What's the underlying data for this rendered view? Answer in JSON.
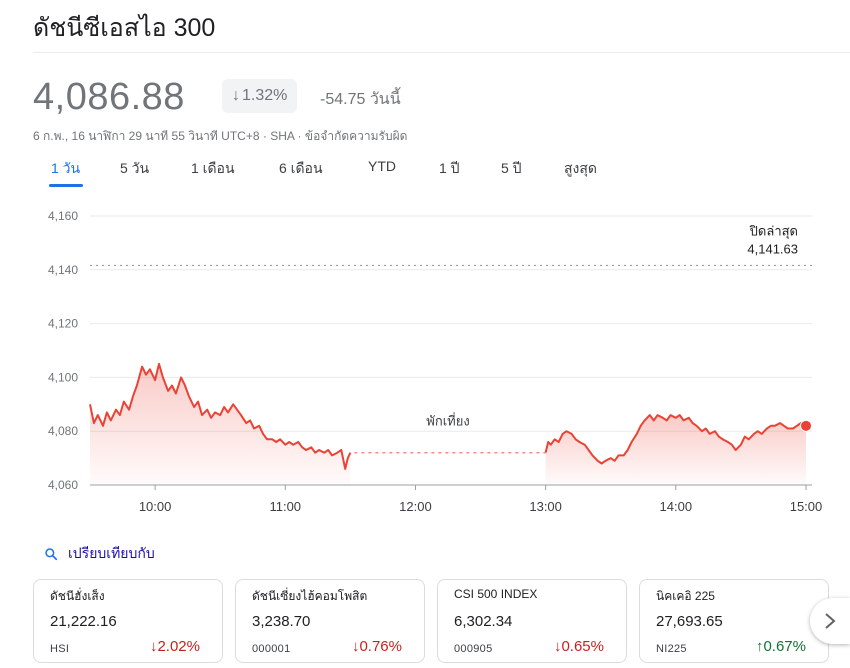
{
  "header": {
    "title": "ดัชนีซีเอสไอ 300"
  },
  "quote": {
    "price": "4,086.88",
    "pct_arrow": "↓",
    "pct": "1.32%",
    "change": "-54.75 วันนี้",
    "timestamp": "6 ก.พ., 16 นาฬิกา 29 นาที 55 วินาที UTC+8",
    "exchange": "SHA",
    "disclaimer": "ข้อจำกัดความรับผิด"
  },
  "tabs": [
    {
      "label": "1 วัน",
      "active": true
    },
    {
      "label": "5 วัน"
    },
    {
      "label": "1 เดือน"
    },
    {
      "label": "6 เดือน"
    },
    {
      "label": "YTD"
    },
    {
      "label": "1 ปี"
    },
    {
      "label": "5 ปี"
    },
    {
      "label": "สูงสุด"
    }
  ],
  "chart_data": {
    "type": "line",
    "ylim": [
      4060,
      4160
    ],
    "yticks": [
      "4,160",
      "4,140",
      "4,120",
      "4,100",
      "4,080",
      "4,060"
    ],
    "ytick_values": [
      4160,
      4140,
      4120,
      4100,
      4080,
      4060
    ],
    "xticks": [
      "10:00",
      "11:00",
      "12:00",
      "13:00",
      "14:00",
      "15:00"
    ],
    "xtick_values": [
      10,
      11,
      12,
      13,
      14,
      15
    ],
    "xlim": [
      9.5,
      15
    ],
    "previous_close_label": "ปิดล่าสุด",
    "previous_close_value": "4,141.63",
    "previous_close": 4141.63,
    "lunch_label": "พักเที่ยง",
    "lunch_level": 4072,
    "line_color": "#ea4335",
    "morning": [
      [
        9.5,
        4090
      ],
      [
        9.53,
        4083
      ],
      [
        9.56,
        4086
      ],
      [
        9.6,
        4082
      ],
      [
        9.63,
        4087
      ],
      [
        9.66,
        4084
      ],
      [
        9.7,
        4088
      ],
      [
        9.73,
        4086
      ],
      [
        9.76,
        4091
      ],
      [
        9.8,
        4088
      ],
      [
        9.83,
        4093
      ],
      [
        9.86,
        4097
      ],
      [
        9.9,
        4104
      ],
      [
        9.93,
        4101
      ],
      [
        9.96,
        4103
      ],
      [
        10.0,
        4099
      ],
      [
        10.03,
        4105
      ],
      [
        10.06,
        4100
      ],
      [
        10.1,
        4095
      ],
      [
        10.13,
        4097
      ],
      [
        10.16,
        4094
      ],
      [
        10.2,
        4100
      ],
      [
        10.23,
        4097
      ],
      [
        10.26,
        4093
      ],
      [
        10.3,
        4089
      ],
      [
        10.33,
        4091
      ],
      [
        10.36,
        4086
      ],
      [
        10.4,
        4088
      ],
      [
        10.43,
        4085
      ],
      [
        10.46,
        4087
      ],
      [
        10.5,
        4086
      ],
      [
        10.53,
        4089
      ],
      [
        10.56,
        4087
      ],
      [
        10.6,
        4090
      ],
      [
        10.63,
        4088
      ],
      [
        10.66,
        4086
      ],
      [
        10.7,
        4083
      ],
      [
        10.73,
        4084
      ],
      [
        10.76,
        4081
      ],
      [
        10.8,
        4082
      ],
      [
        10.83,
        4079
      ],
      [
        10.86,
        4077
      ],
      [
        10.9,
        4077
      ],
      [
        10.93,
        4076
      ],
      [
        10.96,
        4077
      ],
      [
        11.0,
        4075
      ],
      [
        11.03,
        4076
      ],
      [
        11.06,
        4075
      ],
      [
        11.1,
        4076
      ],
      [
        11.13,
        4074
      ],
      [
        11.16,
        4073
      ],
      [
        11.2,
        4074
      ],
      [
        11.23,
        4072
      ],
      [
        11.26,
        4073
      ],
      [
        11.3,
        4072
      ],
      [
        11.33,
        4073
      ],
      [
        11.36,
        4071
      ],
      [
        11.4,
        4072
      ],
      [
        11.43,
        4073
      ],
      [
        11.46,
        4066
      ],
      [
        11.48,
        4070
      ],
      [
        11.5,
        4072
      ]
    ],
    "afternoon": [
      [
        13.0,
        4072
      ],
      [
        13.02,
        4076
      ],
      [
        13.04,
        4075
      ],
      [
        13.07,
        4077
      ],
      [
        13.1,
        4076
      ],
      [
        13.13,
        4079
      ],
      [
        13.16,
        4080
      ],
      [
        13.2,
        4079
      ],
      [
        13.23,
        4077
      ],
      [
        13.26,
        4076
      ],
      [
        13.3,
        4075
      ],
      [
        13.33,
        4073
      ],
      [
        13.36,
        4071
      ],
      [
        13.4,
        4069
      ],
      [
        13.43,
        4068
      ],
      [
        13.46,
        4069
      ],
      [
        13.5,
        4070
      ],
      [
        13.53,
        4069
      ],
      [
        13.56,
        4071
      ],
      [
        13.6,
        4071
      ],
      [
        13.63,
        4073
      ],
      [
        13.66,
        4076
      ],
      [
        13.7,
        4079
      ],
      [
        13.73,
        4082
      ],
      [
        13.76,
        4084
      ],
      [
        13.8,
        4086
      ],
      [
        13.83,
        4084
      ],
      [
        13.86,
        4086
      ],
      [
        13.9,
        4085
      ],
      [
        13.93,
        4084
      ],
      [
        13.96,
        4086
      ],
      [
        14.0,
        4085
      ],
      [
        14.03,
        4086
      ],
      [
        14.06,
        4084
      ],
      [
        14.1,
        4085
      ],
      [
        14.13,
        4083
      ],
      [
        14.16,
        4082
      ],
      [
        14.2,
        4080
      ],
      [
        14.23,
        4081
      ],
      [
        14.26,
        4079
      ],
      [
        14.3,
        4080
      ],
      [
        14.33,
        4078
      ],
      [
        14.36,
        4077
      ],
      [
        14.4,
        4076
      ],
      [
        14.43,
        4075
      ],
      [
        14.46,
        4073
      ],
      [
        14.5,
        4075
      ],
      [
        14.53,
        4078
      ],
      [
        14.56,
        4077
      ],
      [
        14.6,
        4079
      ],
      [
        14.63,
        4080
      ],
      [
        14.66,
        4079
      ],
      [
        14.7,
        4081
      ],
      [
        14.73,
        4082
      ],
      [
        14.76,
        4082
      ],
      [
        14.8,
        4083
      ],
      [
        14.83,
        4082
      ],
      [
        14.86,
        4081
      ],
      [
        14.9,
        4081
      ],
      [
        14.93,
        4082
      ],
      [
        14.96,
        4083
      ],
      [
        14.98,
        4082
      ],
      [
        15.0,
        4082
      ]
    ]
  },
  "compare": {
    "label": "เปรียบเทียบกับ"
  },
  "cards": [
    {
      "name": "ดัชนีฮั่งเส็ง",
      "value": "21,222.16",
      "symbol": "HSI",
      "arrow": "↓",
      "change": "2.02%",
      "direction": "down"
    },
    {
      "name": "ดัชนีเซี่ยงไฮ้คอมโพสิต",
      "value": "3,238.70",
      "symbol": "000001",
      "arrow": "↓",
      "change": "0.76%",
      "direction": "down"
    },
    {
      "name": "CSI 500 INDEX",
      "value": "6,302.34",
      "symbol": "000905",
      "arrow": "↓",
      "change": "0.65%",
      "direction": "down"
    },
    {
      "name": "นิคเคอิ 225",
      "value": "27,693.65",
      "symbol": "NI225",
      "arrow": "↑",
      "change": "0.67%",
      "direction": "up"
    }
  ]
}
